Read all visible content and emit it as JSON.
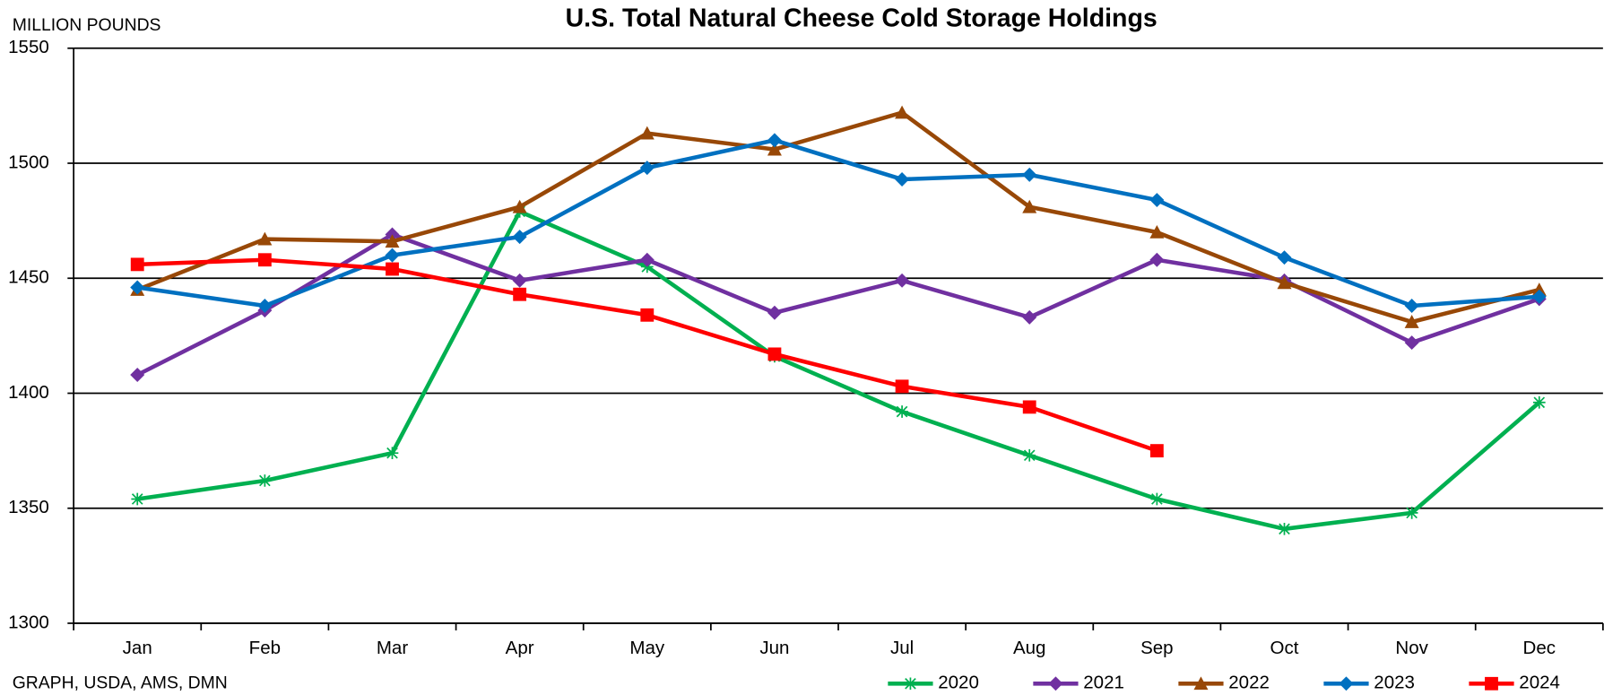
{
  "chart_data": {
    "type": "line",
    "title": "U.S. Total Natural Cheese Cold Storage Holdings",
    "y_label": "MILLION POUNDS",
    "source": "GRAPH, USDA, AMS, DMN",
    "categories": [
      "Jan",
      "Feb",
      "Mar",
      "Apr",
      "May",
      "Jun",
      "Jul",
      "Aug",
      "Sep",
      "Oct",
      "Nov",
      "Dec"
    ],
    "ylim": [
      1300,
      1550
    ],
    "yticks": [
      1300,
      1350,
      1400,
      1450,
      1500,
      1550
    ],
    "grid": true,
    "legend": "bottom-right",
    "series": [
      {
        "name": "2020",
        "color": "#00b050",
        "marker": "asterisk",
        "values": [
          1354,
          1362,
          1374,
          1479,
          1455,
          1416,
          1392,
          1373,
          1354,
          1341,
          1348,
          1396
        ]
      },
      {
        "name": "2021",
        "color": "#7030a0",
        "marker": "diamond",
        "values": [
          1408,
          1436,
          1469,
          1449,
          1458,
          1435,
          1449,
          1433,
          1458,
          1449,
          1422,
          1441
        ]
      },
      {
        "name": "2022",
        "color": "#984807",
        "marker": "triangle",
        "values": [
          1445,
          1467,
          1466,
          1481,
          1513,
          1506,
          1522,
          1481,
          1470,
          1448,
          1431,
          1445
        ]
      },
      {
        "name": "2023",
        "color": "#0070c0",
        "marker": "diamond",
        "values": [
          1446,
          1438,
          1460,
          1468,
          1498,
          1510,
          1493,
          1495,
          1484,
          1459,
          1438,
          1442
        ]
      },
      {
        "name": "2024",
        "color": "#ff0000",
        "marker": "square",
        "values": [
          1456,
          1458,
          1454,
          1443,
          1434,
          1417,
          1403,
          1394,
          1375,
          null,
          null,
          null
        ]
      }
    ]
  }
}
